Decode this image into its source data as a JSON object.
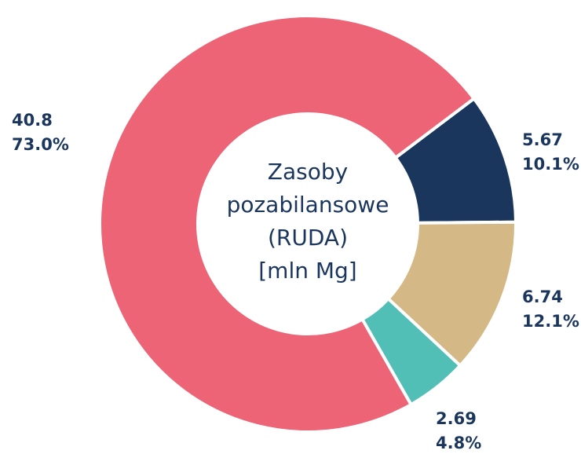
{
  "chart_data": {
    "type": "donut",
    "title_lines": [
      "Zasoby",
      "pozabilansowe",
      "(RUDA)",
      "[mln Mg]"
    ],
    "categories": [
      null,
      null,
      null,
      null
    ],
    "values": [
      5.67,
      6.74,
      2.69,
      40.8
    ],
    "percent_labels": [
      "10.1%",
      "12.1%",
      "4.8%",
      "73.0%"
    ],
    "colors": [
      "#1b365d",
      "#d4b886",
      "#52bfb7",
      "#ec6475"
    ]
  }
}
